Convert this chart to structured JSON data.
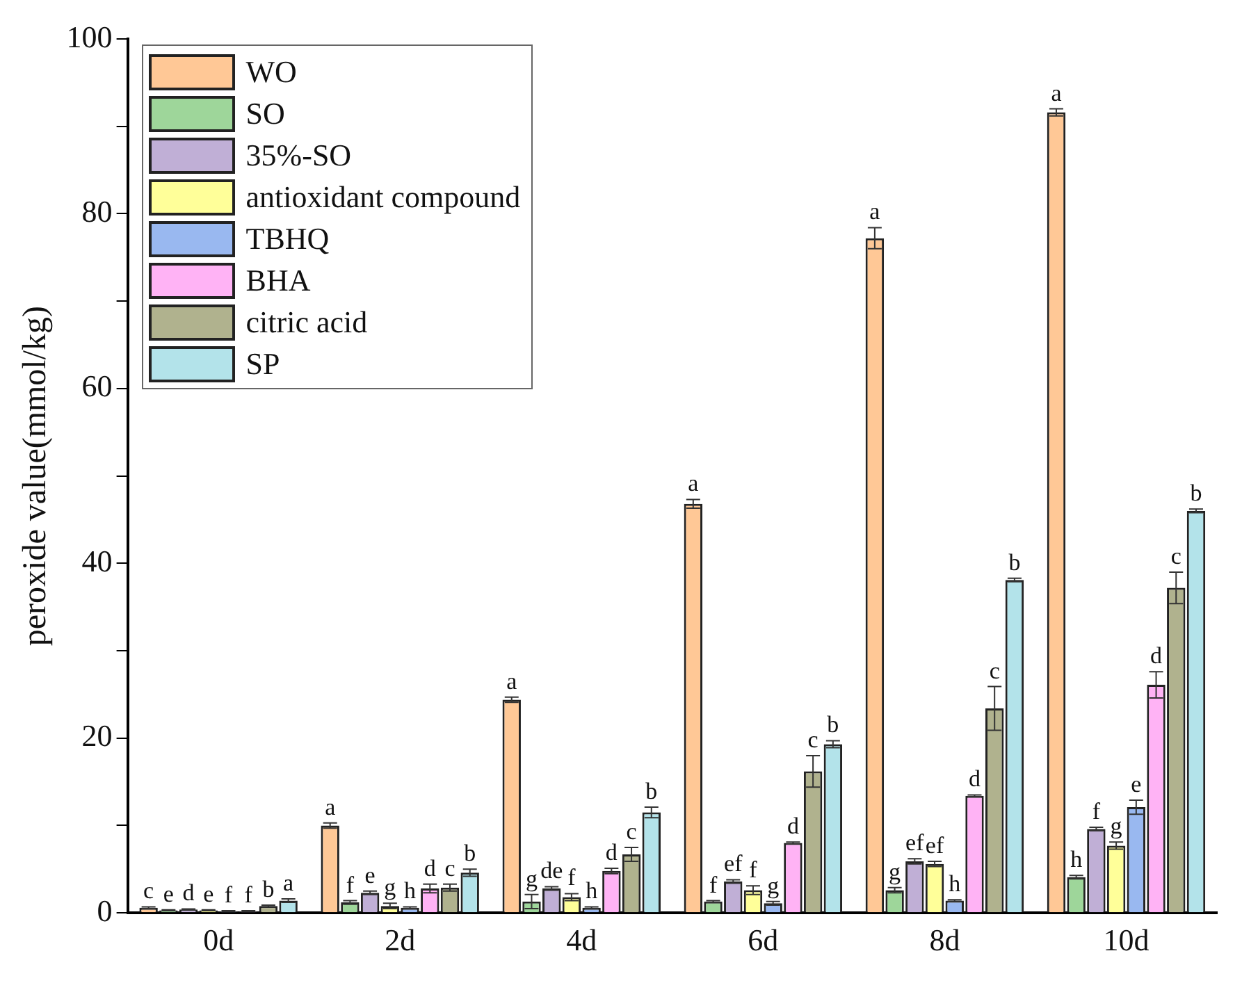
{
  "chart_data": {
    "type": "bar",
    "ylabel": "peroxide value(mmol/kg)",
    "categories": [
      "0d",
      "2d",
      "4d",
      "6d",
      "8d",
      "10d"
    ],
    "ylim": [
      0,
      100
    ],
    "yticks": [
      0,
      {
        "value": 10,
        "label": null
      },
      20,
      {
        "value": 30,
        "label": null
      },
      40,
      {
        "value": 50,
        "label": null
      },
      60,
      {
        "value": 70,
        "label": null
      },
      80,
      {
        "value": 90,
        "label": null
      },
      100
    ],
    "grid": false,
    "legend": "top left",
    "series": [
      {
        "name": "WO",
        "color": "#ffc896",
        "values": [
          0.6,
          10.0,
          24.4,
          46.8,
          77.2,
          91.6
        ],
        "errors": [
          0.1,
          0.3,
          0.3,
          0.5,
          1.2,
          0.4
        ],
        "value_labels": [
          "c",
          "a",
          "a",
          "a",
          "a",
          "a"
        ]
      },
      {
        "name": "SO",
        "color": "#9ed69a",
        "values": [
          0.3,
          1.2,
          1.3,
          1.3,
          2.6,
          4.1
        ],
        "errors": [
          0.05,
          0.2,
          0.8,
          0.1,
          0.3,
          0.2
        ],
        "value_labels": [
          "e",
          "f",
          "g",
          "f",
          "g",
          "h"
        ]
      },
      {
        "name": "35%-SO",
        "color": "#c0afd6",
        "values": [
          0.4,
          2.3,
          2.8,
          3.6,
          5.9,
          9.6
        ],
        "errors": [
          0.05,
          0.2,
          0.2,
          0.2,
          0.3,
          0.2
        ],
        "value_labels": [
          "d",
          "e",
          "de",
          "ef",
          "ef",
          "f"
        ]
      },
      {
        "name": "antioxidant compound",
        "color": "#ffff99",
        "values": [
          0.3,
          0.8,
          1.8,
          2.6,
          5.6,
          7.7
        ],
        "errors": [
          0.05,
          0.3,
          0.4,
          0.5,
          0.3,
          0.4
        ],
        "value_labels": [
          "e",
          "g",
          "f",
          "f",
          "ef",
          "g"
        ]
      },
      {
        "name": "TBHQ",
        "color": "#99b8f0",
        "values": [
          0.2,
          0.6,
          0.6,
          1.1,
          1.4,
          12.1
        ],
        "errors": [
          0.05,
          0.1,
          0.1,
          0.2,
          0.1,
          0.8
        ],
        "value_labels": [
          "f",
          "h",
          "h",
          "g",
          "h",
          "e"
        ]
      },
      {
        "name": "BHA",
        "color": "#ffb3f5",
        "values": [
          0.2,
          2.8,
          4.8,
          8.0,
          13.4,
          26.1
        ],
        "errors": [
          0.05,
          0.5,
          0.3,
          0.1,
          0.1,
          1.5
        ],
        "value_labels": [
          "f",
          "d",
          "d",
          "d",
          "d",
          "d"
        ]
      },
      {
        "name": "citric acid",
        "color": "#b0b28e",
        "values": [
          0.8,
          2.9,
          6.7,
          16.2,
          23.4,
          37.2
        ],
        "errors": [
          0.1,
          0.4,
          0.8,
          1.8,
          2.5,
          1.8
        ],
        "value_labels": [
          "b",
          "c",
          "c",
          "c",
          "c",
          "c"
        ]
      },
      {
        "name": "SP",
        "color": "#b3e3ea",
        "values": [
          1.4,
          4.6,
          11.5,
          19.3,
          38.1,
          46.0
        ],
        "errors": [
          0.2,
          0.4,
          0.6,
          0.4,
          0.2,
          0.2
        ],
        "value_labels": [
          "a",
          "b",
          "b",
          "b",
          "b",
          "b"
        ]
      }
    ]
  }
}
